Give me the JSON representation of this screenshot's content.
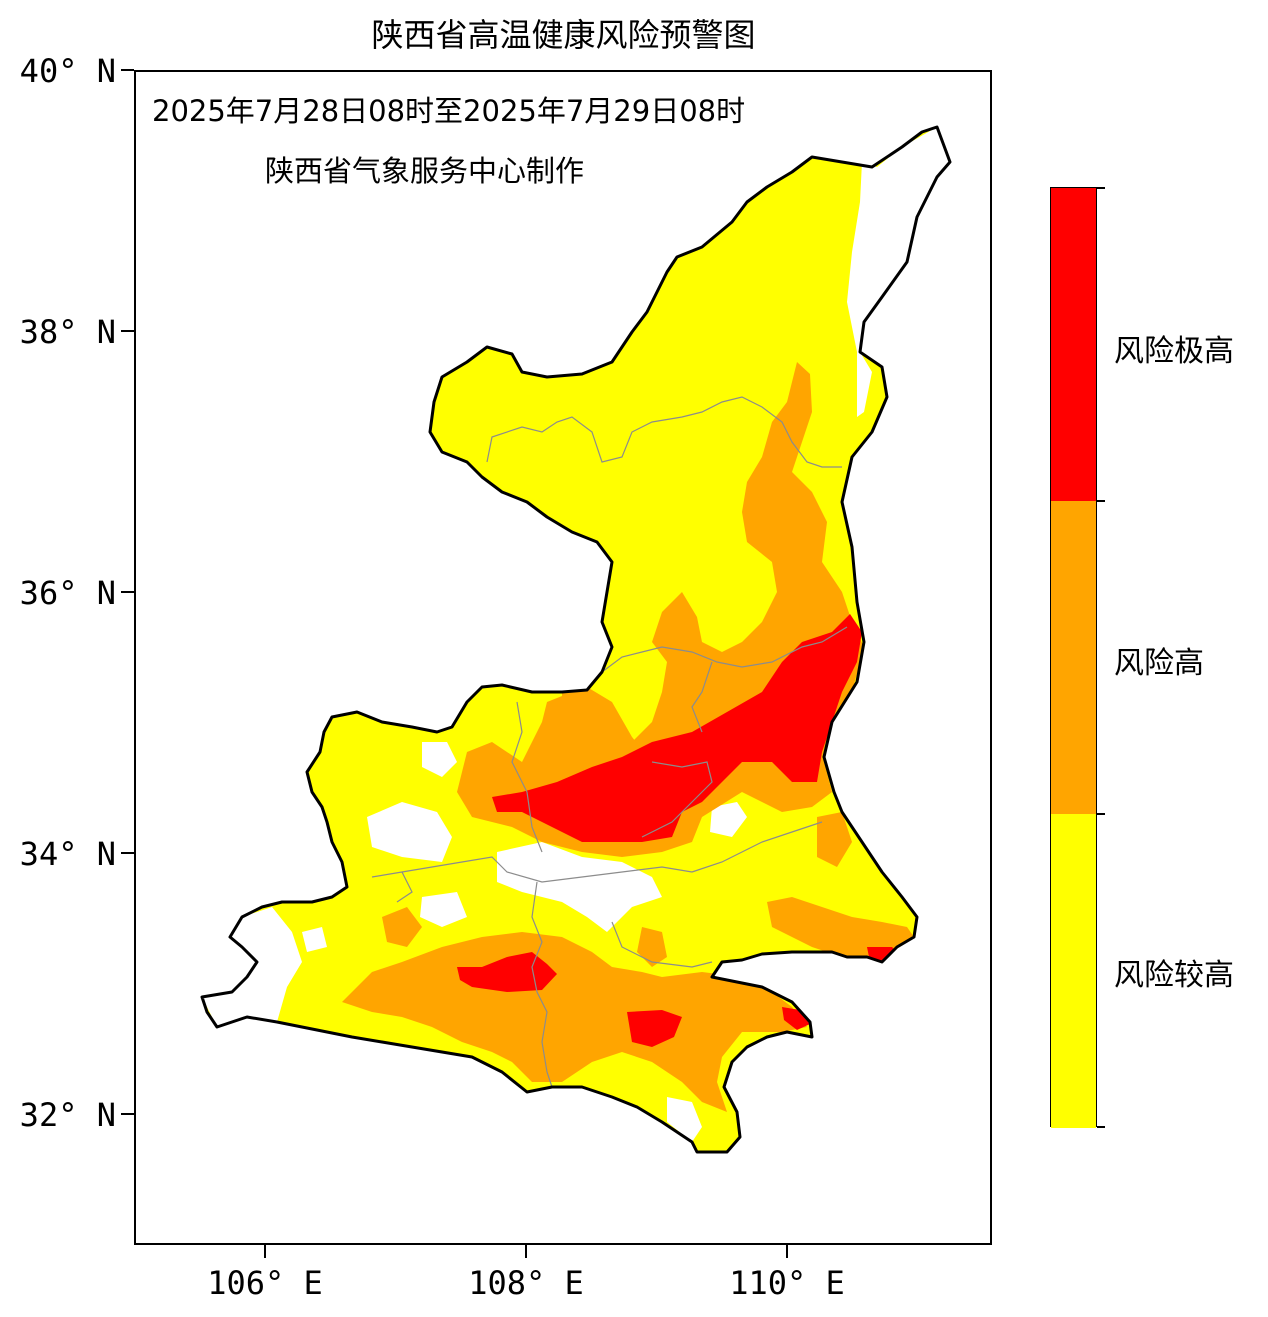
{
  "title": "陕西省高温健康风险预警图",
  "date_range": "2025年7月28日08时至2025年7月29日08时",
  "producer": "陕西省气象服务中心制作",
  "axes": {
    "lat_ticks": [
      "40° N",
      "38° N",
      "36° N",
      "34° N",
      "32° N"
    ],
    "lon_ticks": [
      "106° E",
      "108° E",
      "110° E"
    ]
  },
  "legend": {
    "levels": [
      {
        "label": "风险极高",
        "color": "#ff0000"
      },
      {
        "label": "风险高",
        "color": "#ffa500"
      },
      {
        "label": "风险较高",
        "color": "#ffff00"
      }
    ]
  },
  "colors": {
    "very_high": "#ff0000",
    "high": "#ffa500",
    "elevated": "#ffff00",
    "no_warning": "#ffffff",
    "border": "#000000",
    "city_border": "#8c8c8c"
  }
}
